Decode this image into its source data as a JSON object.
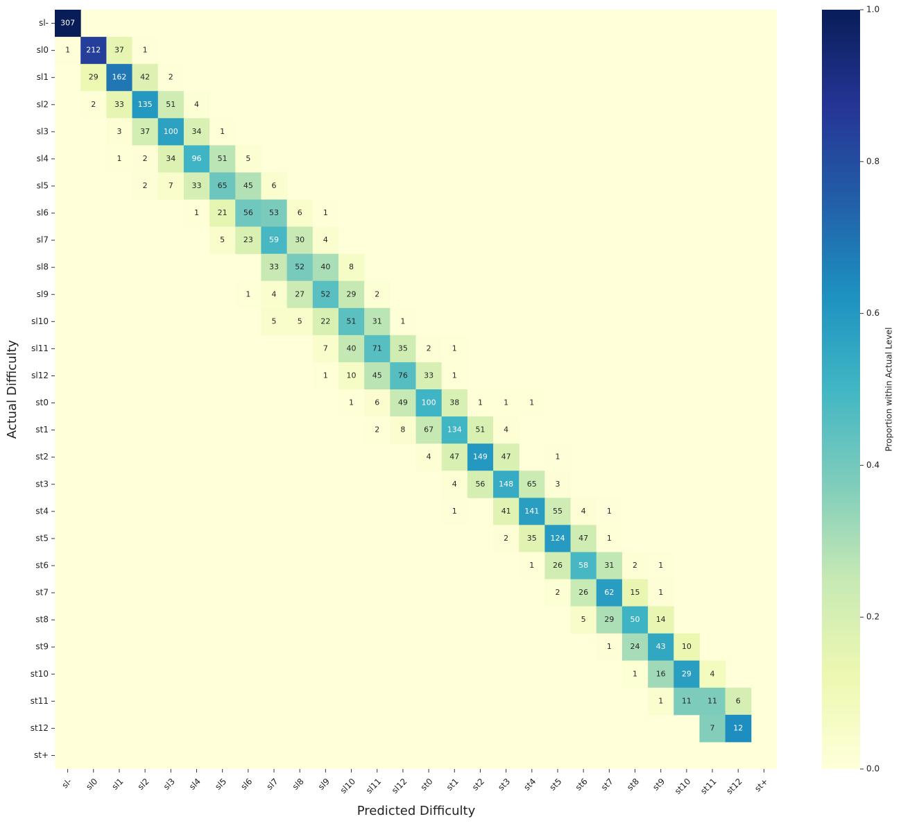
{
  "chart_data": {
    "type": "heatmap",
    "xlabel": "Predicted Difficulty",
    "ylabel": "Actual Difficulty",
    "colorbar_label": "Proportion within Actual Level",
    "colormap": "YlGnBu",
    "normalize": "row",
    "clim": [
      0,
      1
    ],
    "cticks": [
      {
        "value": 0,
        "label": "0.0"
      },
      0.2,
      0.4,
      0.6,
      0.8,
      {
        "value": 1,
        "label": "1.0"
      }
    ],
    "x_categories": [
      "sl-",
      "sl0",
      "sl1",
      "sl2",
      "sl3",
      "sl4",
      "sl5",
      "sl6",
      "sl7",
      "sl8",
      "sl9",
      "sl10",
      "sl11",
      "sl12",
      "st0",
      "st1",
      "st2",
      "st3",
      "st4",
      "st5",
      "st6",
      "st7",
      "st8",
      "st9",
      "st10",
      "st11",
      "st12",
      "st+"
    ],
    "y_categories": [
      "sl-",
      "sl0",
      "sl1",
      "sl2",
      "sl3",
      "sl4",
      "sl5",
      "sl6",
      "sl7",
      "sl8",
      "sl9",
      "sl10",
      "sl11",
      "sl12",
      "st0",
      "st1",
      "st2",
      "st3",
      "st4",
      "st5",
      "st6",
      "st7",
      "st8",
      "st9",
      "st10",
      "st11",
      "st12",
      "st+"
    ],
    "values": [
      [
        307,
        null,
        null,
        null,
        null,
        null,
        null,
        null,
        null,
        null,
        null,
        null,
        null,
        null,
        null,
        null,
        null,
        null,
        null,
        null,
        null,
        null,
        null,
        null,
        null,
        null,
        null,
        null
      ],
      [
        1,
        212,
        37,
        1,
        null,
        null,
        null,
        null,
        null,
        null,
        null,
        null,
        null,
        null,
        null,
        null,
        null,
        null,
        null,
        null,
        null,
        null,
        null,
        null,
        null,
        null,
        null,
        null
      ],
      [
        null,
        29,
        162,
        42,
        2,
        null,
        null,
        null,
        null,
        null,
        null,
        null,
        null,
        null,
        null,
        null,
        null,
        null,
        null,
        null,
        null,
        null,
        null,
        null,
        null,
        null,
        null,
        null
      ],
      [
        null,
        2,
        33,
        135,
        51,
        4,
        null,
        null,
        null,
        null,
        null,
        null,
        null,
        null,
        null,
        null,
        null,
        null,
        null,
        null,
        null,
        null,
        null,
        null,
        null,
        null,
        null,
        null
      ],
      [
        null,
        null,
        3,
        37,
        100,
        34,
        1,
        null,
        null,
        null,
        null,
        null,
        null,
        null,
        null,
        null,
        null,
        null,
        null,
        null,
        null,
        null,
        null,
        null,
        null,
        null,
        null,
        null
      ],
      [
        null,
        null,
        1,
        2,
        34,
        96,
        51,
        5,
        null,
        null,
        null,
        null,
        null,
        null,
        null,
        null,
        null,
        null,
        null,
        null,
        null,
        null,
        null,
        null,
        null,
        null,
        null,
        null
      ],
      [
        null,
        null,
        null,
        2,
        7,
        33,
        65,
        45,
        6,
        null,
        null,
        null,
        null,
        null,
        null,
        null,
        null,
        null,
        null,
        null,
        null,
        null,
        null,
        null,
        null,
        null,
        null,
        null
      ],
      [
        null,
        null,
        null,
        null,
        null,
        1,
        21,
        56,
        53,
        6,
        1,
        null,
        null,
        null,
        null,
        null,
        null,
        null,
        null,
        null,
        null,
        null,
        null,
        null,
        null,
        null,
        null,
        null
      ],
      [
        null,
        null,
        null,
        null,
        null,
        null,
        5,
        23,
        59,
        30,
        4,
        null,
        null,
        null,
        null,
        null,
        null,
        null,
        null,
        null,
        null,
        null,
        null,
        null,
        null,
        null,
        null,
        null
      ],
      [
        null,
        null,
        null,
        null,
        null,
        null,
        null,
        null,
        33,
        52,
        40,
        8,
        null,
        null,
        null,
        null,
        null,
        null,
        null,
        null,
        null,
        null,
        null,
        null,
        null,
        null,
        null,
        null
      ],
      [
        null,
        null,
        null,
        null,
        null,
        null,
        null,
        1,
        4,
        27,
        52,
        29,
        2,
        null,
        null,
        null,
        null,
        null,
        null,
        null,
        null,
        null,
        null,
        null,
        null,
        null,
        null,
        null
      ],
      [
        null,
        null,
        null,
        null,
        null,
        null,
        null,
        null,
        5,
        5,
        22,
        51,
        31,
        1,
        null,
        null,
        null,
        null,
        null,
        null,
        null,
        null,
        null,
        null,
        null,
        null,
        null,
        null
      ],
      [
        null,
        null,
        null,
        null,
        null,
        null,
        null,
        null,
        null,
        null,
        7,
        40,
        71,
        35,
        2,
        1,
        null,
        null,
        null,
        null,
        null,
        null,
        null,
        null,
        null,
        null,
        null,
        null
      ],
      [
        null,
        null,
        null,
        null,
        null,
        null,
        null,
        null,
        null,
        null,
        1,
        10,
        45,
        76,
        33,
        1,
        null,
        null,
        null,
        null,
        null,
        null,
        null,
        null,
        null,
        null,
        null,
        null
      ],
      [
        null,
        null,
        null,
        null,
        null,
        null,
        null,
        null,
        null,
        null,
        null,
        1,
        6,
        49,
        100,
        38,
        1,
        1,
        1,
        null,
        null,
        null,
        null,
        null,
        null,
        null,
        null,
        null
      ],
      [
        null,
        null,
        null,
        null,
        null,
        null,
        null,
        null,
        null,
        null,
        null,
        null,
        2,
        8,
        67,
        134,
        51,
        4,
        null,
        null,
        null,
        null,
        null,
        null,
        null,
        null,
        null,
        null
      ],
      [
        null,
        null,
        null,
        null,
        null,
        null,
        null,
        null,
        null,
        null,
        null,
        null,
        null,
        null,
        4,
        47,
        149,
        47,
        null,
        1,
        null,
        null,
        null,
        null,
        null,
        null,
        null,
        null
      ],
      [
        null,
        null,
        null,
        null,
        null,
        null,
        null,
        null,
        null,
        null,
        null,
        null,
        null,
        null,
        null,
        4,
        56,
        148,
        65,
        3,
        null,
        null,
        null,
        null,
        null,
        null,
        null,
        null
      ],
      [
        null,
        null,
        null,
        null,
        null,
        null,
        null,
        null,
        null,
        null,
        null,
        null,
        null,
        null,
        null,
        1,
        null,
        41,
        141,
        55,
        4,
        1,
        null,
        null,
        null,
        null,
        null,
        null
      ],
      [
        null,
        null,
        null,
        null,
        null,
        null,
        null,
        null,
        null,
        null,
        null,
        null,
        null,
        null,
        null,
        null,
        null,
        2,
        35,
        124,
        47,
        1,
        null,
        null,
        null,
        null,
        null,
        null
      ],
      [
        null,
        null,
        null,
        null,
        null,
        null,
        null,
        null,
        null,
        null,
        null,
        null,
        null,
        null,
        null,
        null,
        null,
        null,
        1,
        26,
        58,
        31,
        2,
        1,
        null,
        null,
        null,
        null
      ],
      [
        null,
        null,
        null,
        null,
        null,
        null,
        null,
        null,
        null,
        null,
        null,
        null,
        null,
        null,
        null,
        null,
        null,
        null,
        null,
        2,
        26,
        62,
        15,
        1,
        null,
        null,
        null,
        null
      ],
      [
        null,
        null,
        null,
        null,
        null,
        null,
        null,
        null,
        null,
        null,
        null,
        null,
        null,
        null,
        null,
        null,
        null,
        null,
        null,
        null,
        5,
        29,
        50,
        14,
        null,
        null,
        null,
        null
      ],
      [
        null,
        null,
        null,
        null,
        null,
        null,
        null,
        null,
        null,
        null,
        null,
        null,
        null,
        null,
        null,
        null,
        null,
        null,
        null,
        null,
        null,
        1,
        24,
        43,
        10,
        null,
        null,
        null
      ],
      [
        null,
        null,
        null,
        null,
        null,
        null,
        null,
        null,
        null,
        null,
        null,
        null,
        null,
        null,
        null,
        null,
        null,
        null,
        null,
        null,
        null,
        null,
        1,
        16,
        29,
        4,
        null,
        null
      ],
      [
        null,
        null,
        null,
        null,
        null,
        null,
        null,
        null,
        null,
        null,
        null,
        null,
        null,
        null,
        null,
        null,
        null,
        null,
        null,
        null,
        null,
        null,
        null,
        1,
        11,
        11,
        6,
        null
      ],
      [
        null,
        null,
        null,
        null,
        null,
        null,
        null,
        null,
        null,
        null,
        null,
        null,
        null,
        null,
        null,
        null,
        null,
        null,
        null,
        null,
        null,
        null,
        null,
        null,
        null,
        7,
        12,
        null
      ],
      [
        null,
        null,
        null,
        null,
        null,
        null,
        null,
        null,
        null,
        null,
        null,
        null,
        null,
        null,
        null,
        null,
        null,
        null,
        null,
        null,
        null,
        null,
        null,
        null,
        null,
        null,
        null,
        null
      ]
    ]
  }
}
